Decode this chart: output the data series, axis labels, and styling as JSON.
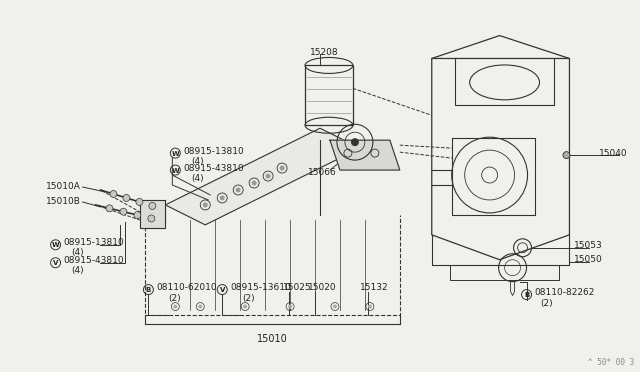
{
  "bg_color": "#f0f0ec",
  "line_color": "#333333",
  "text_color": "#222222",
  "watermark": "^ 50* 00 3",
  "fig_w": 6.4,
  "fig_h": 3.72,
  "dpi": 100,
  "parts": {
    "oil_filter_label": "15208",
    "pump_cover_label": "15066",
    "bolt_right_label": "15040",
    "drain_plug_label": "15053",
    "drain_pan_label": "15050",
    "oil_pump_a": "15010A",
    "oil_pump_b": "15010B",
    "washer1_top_code": "08915-13810",
    "washer1_top_qty": "(4)",
    "washer2_top_code": "08915-43810",
    "washer2_top_qty": "(4)",
    "washer1_bot_code": "08915-13810",
    "washer1_bot_qty": "(4)",
    "washer2_bot_code": "08915-43810",
    "washer2_bot_qty": "(4)",
    "bolt1_code": "08110-62010",
    "bolt1_qty": "(2)",
    "washer3_code": "08915-13610",
    "washer3_qty": "(2)",
    "part_15025": "15025",
    "part_15020": "15020",
    "part_15132": "15132",
    "pump_assy": "15010",
    "bolt2_code": "08110-82262",
    "bolt2_qty": "(2)"
  }
}
